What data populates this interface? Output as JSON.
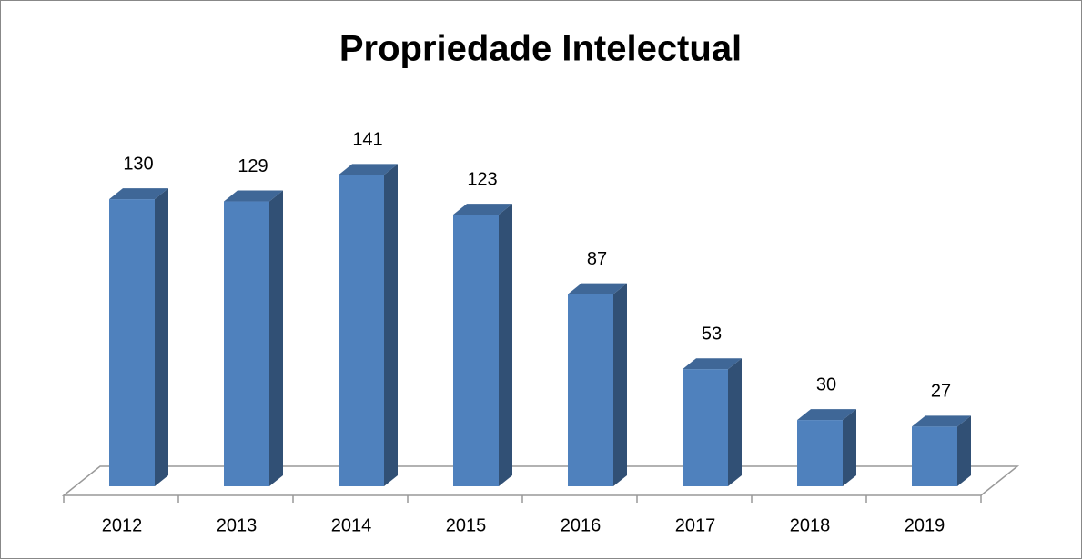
{
  "chart_data": {
    "type": "bar3d",
    "title": "Propriedade Intelectual",
    "categories": [
      "2012",
      "2013",
      "2014",
      "2015",
      "2016",
      "2017",
      "2018",
      "2019"
    ],
    "values": [
      130,
      129,
      141,
      123,
      87,
      53,
      30,
      27
    ],
    "color": "#4f81bd"
  }
}
